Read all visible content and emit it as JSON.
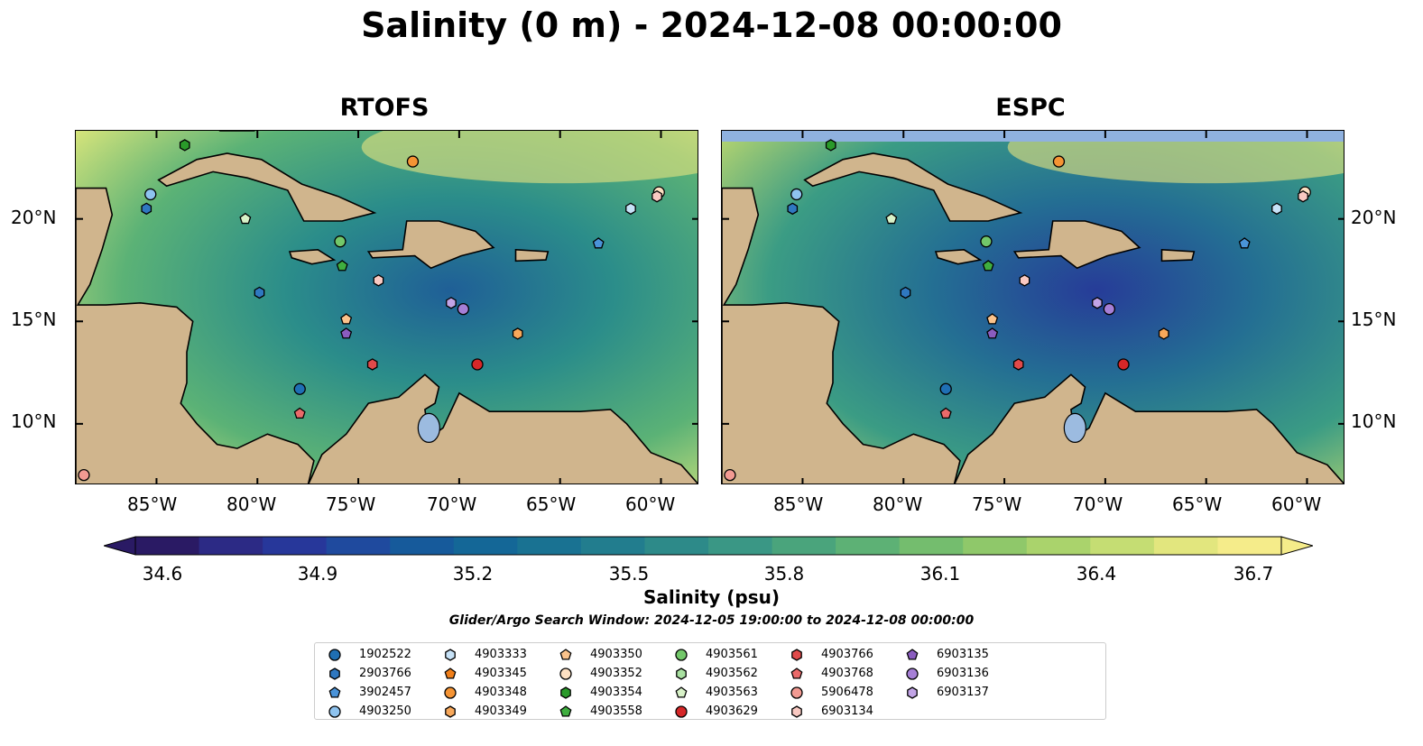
{
  "title": "Salinity (0 m) - 2024-12-08 00:00:00",
  "panels": [
    {
      "title": "RTOFS",
      "land_top": false
    },
    {
      "title": "ESPC",
      "land_top": true
    }
  ],
  "axis": {
    "lat_ticks": [
      "10°N",
      "15°N",
      "20°N"
    ],
    "lon_ticks": [
      "85°W",
      "80°W",
      "75°W",
      "70°W",
      "65°W",
      "60°W"
    ]
  },
  "colorbar": {
    "ticks": [
      "34.6",
      "34.9",
      "35.2",
      "35.5",
      "35.8",
      "36.1",
      "36.4",
      "36.7"
    ],
    "label": "Salinity (psu)",
    "colors": [
      "#2a1a64",
      "#2c2a85",
      "#27379a",
      "#1f4a9e",
      "#165a9b",
      "#146797",
      "#197292",
      "#227d8e",
      "#2d8a89",
      "#3a9785",
      "#4aa47c",
      "#5db175",
      "#74bd6e",
      "#8fc86a",
      "#aad36c",
      "#c5dd73",
      "#e2e67e",
      "#f5ec8a"
    ]
  },
  "search_window": "Glider/Argo Search Window: 2024-12-05 19:00:00 to 2024-12-08 00:00:00",
  "legend": [
    {
      "id": "1902522",
      "shape": "circle",
      "color": "#1f6fb4"
    },
    {
      "id": "2903766",
      "shape": "hexagon",
      "color": "#2f78c0"
    },
    {
      "id": "3902457",
      "shape": "pentagon",
      "color": "#4a93d8"
    },
    {
      "id": "4903250",
      "shape": "circle",
      "color": "#8ec3ef"
    },
    {
      "id": "4903333",
      "shape": "hexagon",
      "color": "#c7e2f7"
    },
    {
      "id": "4903345",
      "shape": "pentagon",
      "color": "#f07f1a"
    },
    {
      "id": "4903348",
      "shape": "circle",
      "color": "#f59434"
    },
    {
      "id": "4903349",
      "shape": "hexagon",
      "color": "#f8a85a"
    },
    {
      "id": "4903350",
      "shape": "pentagon",
      "color": "#fbc38c"
    },
    {
      "id": "4903352",
      "shape": "circle",
      "color": "#fde0c2"
    },
    {
      "id": "4903354",
      "shape": "hexagon",
      "color": "#2a9a2a"
    },
    {
      "id": "4903558",
      "shape": "pentagon",
      "color": "#3fae3f"
    },
    {
      "id": "4903561",
      "shape": "circle",
      "color": "#73c86a"
    },
    {
      "id": "4903562",
      "shape": "hexagon",
      "color": "#a8e0a0"
    },
    {
      "id": "4903563",
      "shape": "pentagon",
      "color": "#d8f2c8"
    },
    {
      "id": "4903629",
      "shape": "circle",
      "color": "#d62728"
    },
    {
      "id": "4903766",
      "shape": "hexagon",
      "color": "#e04a4a"
    },
    {
      "id": "4903768",
      "shape": "pentagon",
      "color": "#ea6a6a"
    },
    {
      "id": "5906478",
      "shape": "circle",
      "color": "#f29a92"
    },
    {
      "id": "6903134",
      "shape": "hexagon",
      "color": "#f9c9c2"
    },
    {
      "id": "6903135",
      "shape": "pentagon",
      "color": "#8a5cbf"
    },
    {
      "id": "6903136",
      "shape": "circle",
      "color": "#a67fd6"
    },
    {
      "id": "6903137",
      "shape": "hexagon",
      "color": "#c2a4e6"
    }
  ],
  "floats": [
    {
      "id": "4903354",
      "lon": -83.6,
      "lat": 23.6
    },
    {
      "id": "4903348",
      "lon": -72.3,
      "lat": 22.8
    },
    {
      "id": "4903250",
      "lon": -85.3,
      "lat": 21.2
    },
    {
      "id": "2903766",
      "lon": -85.5,
      "lat": 20.5
    },
    {
      "id": "4903563",
      "lon": -80.6,
      "lat": 20.0
    },
    {
      "id": "4903352",
      "lon": -60.1,
      "lat": 21.3
    },
    {
      "id": "6903134",
      "lon": -60.2,
      "lat": 21.1
    },
    {
      "id": "4903333",
      "lon": -61.5,
      "lat": 20.5
    },
    {
      "id": "4903561",
      "lon": -75.9,
      "lat": 18.9
    },
    {
      "id": "3902457",
      "lon": -63.1,
      "lat": 18.8
    },
    {
      "id": "4903558",
      "lon": -75.8,
      "lat": 17.7
    },
    {
      "id": "6903134",
      "lon": -74.0,
      "lat": 17.0
    },
    {
      "id": "2903766",
      "lon": -79.9,
      "lat": 16.4
    },
    {
      "id": "6903137",
      "lon": -70.4,
      "lat": 15.9
    },
    {
      "id": "6903136",
      "lon": -69.8,
      "lat": 15.6
    },
    {
      "id": "4903350",
      "lon": -75.6,
      "lat": 15.1
    },
    {
      "id": "6903135",
      "lon": -75.6,
      "lat": 14.4
    },
    {
      "id": "4903349",
      "lon": -67.1,
      "lat": 14.4
    },
    {
      "id": "4903766",
      "lon": -74.3,
      "lat": 12.9
    },
    {
      "id": "4903629",
      "lon": -69.1,
      "lat": 12.9
    },
    {
      "id": "1902522",
      "lon": -77.9,
      "lat": 11.7
    },
    {
      "id": "4903768",
      "lon": -77.9,
      "lat": 10.5
    },
    {
      "id": "5906478",
      "lon": -88.6,
      "lat": 7.5
    }
  ]
}
